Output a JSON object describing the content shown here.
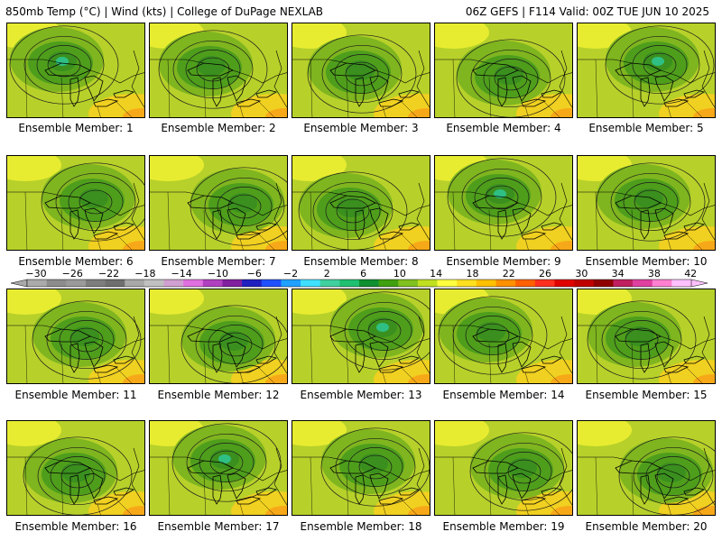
{
  "header": {
    "left": "850mb Temp (°C) | Wind (kts) | College of DuPage NEXLAB",
    "right": "06Z GEFS | F114 Valid: 00Z TUE JUN 10 2025"
  },
  "colorbar": {
    "labels": [
      "-30",
      "-26",
      "-22",
      "-18",
      "-14",
      "-10",
      "-6",
      "-2",
      "2",
      "6",
      "10",
      "14",
      "18",
      "22",
      "26",
      "30",
      "34",
      "38",
      "42"
    ],
    "colors": [
      "#aaaaaa",
      "#8c8c8c",
      "#9a9a9a",
      "#7d7d7d",
      "#6f6f6f",
      "#a8a8a8",
      "#c0c0c0",
      "#d0a0d0",
      "#e070e0",
      "#b040c0",
      "#8020a0",
      "#2020c0",
      "#2050ff",
      "#20a0ff",
      "#40e0ff",
      "#40d0a0",
      "#20c070",
      "#109030",
      "#40a010",
      "#80c020",
      "#c0e020",
      "#ffff40",
      "#ffe020",
      "#ffc000",
      "#ff9000",
      "#ff6000",
      "#ff3020",
      "#e00000",
      "#c00000",
      "#900000",
      "#c02060",
      "#e040a0",
      "#ff80d0",
      "#ffc0ff"
    ]
  },
  "panels": [
    {
      "label": "Ensemble Member: 1"
    },
    {
      "label": "Ensemble Member: 2"
    },
    {
      "label": "Ensemble Member: 3"
    },
    {
      "label": "Ensemble Member: 4"
    },
    {
      "label": "Ensemble Member: 5"
    },
    {
      "label": "Ensemble Member: 6"
    },
    {
      "label": "Ensemble Member: 7"
    },
    {
      "label": "Ensemble Member: 8"
    },
    {
      "label": "Ensemble Member: 9"
    },
    {
      "label": "Ensemble Member: 10"
    },
    {
      "label": "Ensemble Member: 11"
    },
    {
      "label": "Ensemble Member: 12"
    },
    {
      "label": "Ensemble Member: 13"
    },
    {
      "label": "Ensemble Member: 14"
    },
    {
      "label": "Ensemble Member: 15"
    },
    {
      "label": "Ensemble Member: 16"
    },
    {
      "label": "Ensemble Member: 17"
    },
    {
      "label": "Ensemble Member: 18"
    },
    {
      "label": "Ensemble Member: 19"
    },
    {
      "label": "Ensemble Member: 20"
    }
  ]
}
